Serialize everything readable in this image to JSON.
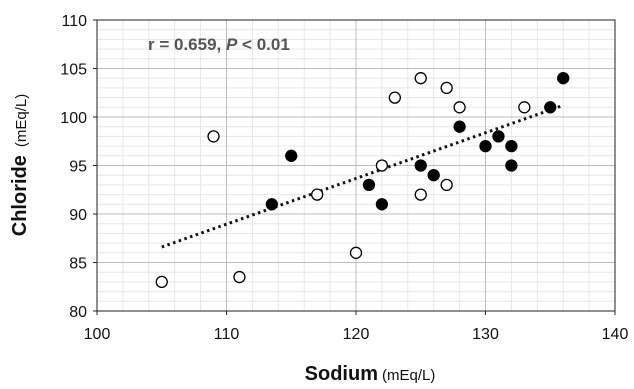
{
  "chart_data": {
    "type": "scatter",
    "annotation": {
      "r_text": "r = 0.659, ",
      "p_italic": "P",
      "p_rest": " < 0.01"
    },
    "xlabel": "Sodium",
    "xlabel_unit": "(mEq/L)",
    "ylabel": "Chloride",
    "ylabel_unit": "(mEq/L)",
    "xlim": [
      100,
      140
    ],
    "ylim": [
      80,
      110
    ],
    "x_ticks": [
      "100",
      "110",
      "120",
      "130",
      "140"
    ],
    "y_ticks": [
      "80",
      "85",
      "90",
      "95",
      "100",
      "105",
      "110"
    ],
    "grid": true,
    "minor_grid": true,
    "series": [
      {
        "marker": "filled",
        "points": [
          [
            113.5,
            91
          ],
          [
            115,
            96
          ],
          [
            121,
            93
          ],
          [
            122,
            91
          ],
          [
            125,
            95
          ],
          [
            126,
            94
          ],
          [
            128,
            99
          ],
          [
            130,
            97
          ],
          [
            131,
            98
          ],
          [
            132,
            97
          ],
          [
            132,
            95
          ],
          [
            135,
            101
          ],
          [
            136,
            104
          ]
        ]
      },
      {
        "marker": "open",
        "points": [
          [
            105,
            83
          ],
          [
            109,
            98
          ],
          [
            111,
            83.5
          ],
          [
            117,
            92
          ],
          [
            120,
            86
          ],
          [
            122,
            95
          ],
          [
            123,
            102
          ],
          [
            125,
            104
          ],
          [
            125,
            92
          ],
          [
            127,
            103
          ],
          [
            127,
            93
          ],
          [
            128,
            101
          ],
          [
            133,
            101
          ]
        ]
      }
    ],
    "trendline": {
      "style": "dotted",
      "from": [
        105,
        86.6
      ],
      "to": [
        136,
        101.2
      ]
    }
  }
}
